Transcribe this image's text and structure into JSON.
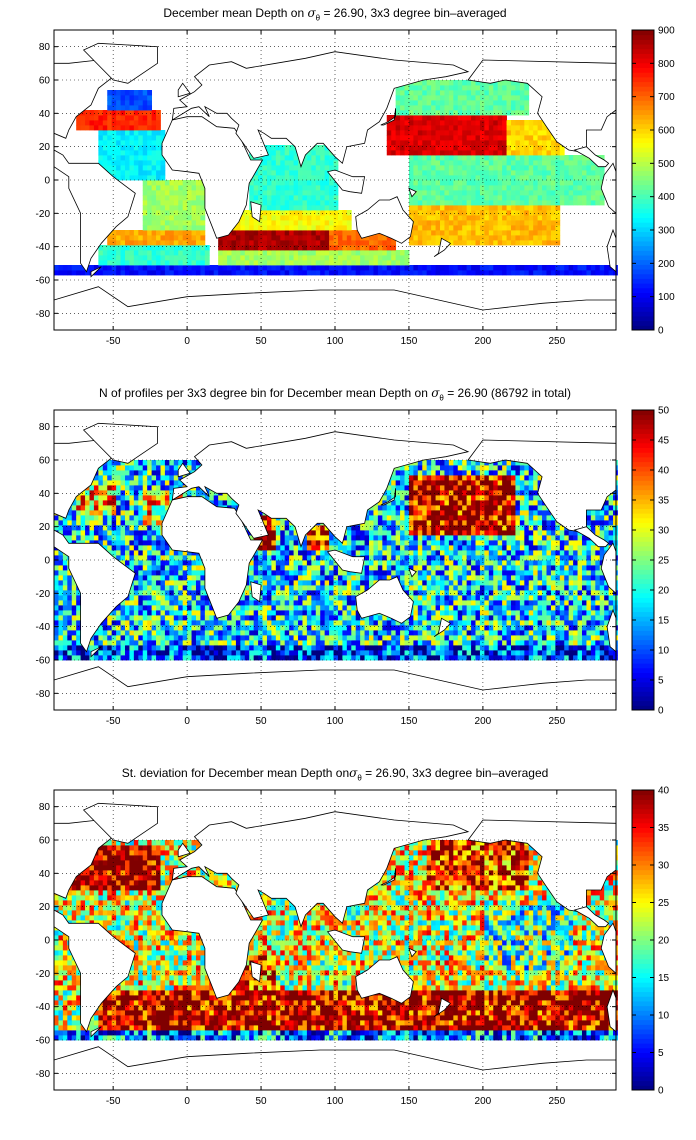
{
  "chart_data": [
    {
      "type": "heatmap",
      "title_prefix": "December mean Depth on ",
      "title_symbol": "σ",
      "title_subscript": "θ",
      "title_suffix": " = 26.90, 3x3 degree bin–averaged",
      "xticks": [
        "-50",
        "0",
        "50",
        "100",
        "150",
        "200",
        "250"
      ],
      "xtick_values": [
        -50,
        0,
        50,
        100,
        150,
        200,
        250
      ],
      "yticks": [
        "80",
        "60",
        "40",
        "20",
        "0",
        "-20",
        "-40",
        "-60",
        "-80"
      ],
      "ytick_values": [
        80,
        60,
        40,
        20,
        0,
        -20,
        -40,
        -60,
        -80
      ],
      "xlim": [
        -90,
        290
      ],
      "ylim": [
        -90,
        90
      ],
      "clim": [
        0,
        900
      ],
      "colorbar_ticks": [
        "900",
        "800",
        "700",
        "600",
        "500",
        "400",
        "300",
        "200",
        "100",
        "0"
      ],
      "colorbar_values": [
        900,
        800,
        700,
        600,
        500,
        400,
        300,
        200,
        100,
        0
      ],
      "grid": true,
      "colormap": "jet",
      "bin_size_deg": 3,
      "regions": [
        {
          "lon": [
            -60,
            -15
          ],
          "lat": [
            0,
            30
          ],
          "value": 330
        },
        {
          "lon": [
            -75,
            -20
          ],
          "lat": [
            30,
            40
          ],
          "value": 760
        },
        {
          "lon": [
            -55,
            -25
          ],
          "lat": [
            40,
            52
          ],
          "value": 180
        },
        {
          "lon": [
            -30,
            10
          ],
          "lat": [
            -30,
            0
          ],
          "value": 480
        },
        {
          "lon": [
            -55,
            10
          ],
          "lat": [
            -40,
            -30
          ],
          "value": 640
        },
        {
          "lon": [
            -60,
            15
          ],
          "lat": [
            -52,
            -40
          ],
          "value": 380
        },
        {
          "lon": [
            40,
            100
          ],
          "lat": [
            -20,
            20
          ],
          "value": 380
        },
        {
          "lon": [
            30,
            110
          ],
          "lat": [
            -30,
            -20
          ],
          "value": 560
        },
        {
          "lon": [
            20,
            95
          ],
          "lat": [
            -42,
            -30
          ],
          "value": 860
        },
        {
          "lon": [
            95,
            140
          ],
          "lat": [
            -42,
            -30
          ],
          "value": 700
        },
        {
          "lon": [
            20,
            150
          ],
          "lat": [
            -52,
            -42
          ],
          "value": 480
        },
        {
          "lon": [
            150,
            250
          ],
          "lat": [
            -40,
            -15
          ],
          "value": 620
        },
        {
          "lon": [
            150,
            280
          ],
          "lat": [
            -15,
            15
          ],
          "value": 420
        },
        {
          "lon": [
            135,
            215
          ],
          "lat": [
            15,
            38
          ],
          "value": 820
        },
        {
          "lon": [
            215,
            255
          ],
          "lat": [
            15,
            35
          ],
          "value": 600
        },
        {
          "lon": [
            140,
            230
          ],
          "lat": [
            38,
            60
          ],
          "value": 420
        },
        {
          "lon": [
            -90,
            290
          ],
          "lat": [
            -58,
            -52
          ],
          "value": 120
        }
      ]
    },
    {
      "type": "heatmap",
      "title_prefix": "N of profiles per 3x3 degree bin for December mean Depth on ",
      "title_symbol": "σ",
      "title_subscript": "θ",
      "title_suffix": " = 26.90 (86792 in total)",
      "xticks": [
        "-50",
        "0",
        "50",
        "100",
        "150",
        "200",
        "250"
      ],
      "xtick_values": [
        -50,
        0,
        50,
        100,
        150,
        200,
        250
      ],
      "yticks": [
        "80",
        "60",
        "40",
        "20",
        "0",
        "-20",
        "-40",
        "-60",
        "-80"
      ],
      "ytick_values": [
        80,
        60,
        40,
        20,
        0,
        -20,
        -40,
        -60,
        -80
      ],
      "xlim": [
        -90,
        290
      ],
      "ylim": [
        -90,
        90
      ],
      "clim": [
        0,
        50
      ],
      "colorbar_ticks": [
        "50",
        "45",
        "40",
        "35",
        "30",
        "25",
        "20",
        "15",
        "10",
        "5",
        "0"
      ],
      "colorbar_values": [
        50,
        45,
        40,
        35,
        30,
        25,
        20,
        15,
        10,
        5,
        0
      ],
      "grid": true,
      "colormap": "jet",
      "bin_size_deg": 3,
      "regions": [
        {
          "lon": [
            -90,
            290
          ],
          "lat": [
            -60,
            60
          ],
          "value": 18
        },
        {
          "lon": [
            150,
            220
          ],
          "lat": [
            15,
            50
          ],
          "value": 47
        },
        {
          "lon": [
            45,
            60
          ],
          "lat": [
            5,
            25
          ],
          "value": 46
        },
        {
          "lon": [
            80,
            95
          ],
          "lat": [
            5,
            20
          ],
          "value": 44
        },
        {
          "lon": [
            -75,
            -50
          ],
          "lat": [
            25,
            45
          ],
          "value": 34
        },
        {
          "lon": [
            -30,
            0
          ],
          "lat": [
            20,
            40
          ],
          "value": 32
        },
        {
          "lon": [
            -90,
            290
          ],
          "lat": [
            -60,
            -52
          ],
          "value": 8
        }
      ]
    },
    {
      "type": "heatmap",
      "title_prefix": "St. deviation for December mean Depth on",
      "title_symbol": "σ",
      "title_subscript": "θ",
      "title_suffix": " = 26.90, 3x3 degree bin–averaged",
      "xticks": [
        "-50",
        "0",
        "50",
        "100",
        "150",
        "200",
        "250"
      ],
      "xtick_values": [
        -50,
        0,
        50,
        100,
        150,
        200,
        250
      ],
      "yticks": [
        "80",
        "60",
        "40",
        "20",
        "0",
        "-20",
        "-40",
        "-60",
        "-80"
      ],
      "ytick_values": [
        80,
        60,
        40,
        20,
        0,
        -20,
        -40,
        -60,
        -80
      ],
      "xlim": [
        -90,
        290
      ],
      "ylim": [
        -90,
        90
      ],
      "clim": [
        0,
        40
      ],
      "colorbar_ticks": [
        "40",
        "35",
        "30",
        "25",
        "20",
        "15",
        "10",
        "5",
        "0"
      ],
      "colorbar_values": [
        40,
        35,
        30,
        25,
        20,
        15,
        10,
        5,
        0
      ],
      "grid": true,
      "colormap": "jet",
      "bin_size_deg": 3,
      "regions": [
        {
          "lon": [
            -90,
            290
          ],
          "lat": [
            -60,
            60
          ],
          "value": 24
        },
        {
          "lon": [
            -80,
            -20
          ],
          "lat": [
            28,
            55
          ],
          "value": 40
        },
        {
          "lon": [
            -60,
            300
          ],
          "lat": [
            -55,
            -32
          ],
          "value": 38
        },
        {
          "lon": [
            160,
            230
          ],
          "lat": [
            30,
            58
          ],
          "value": 34
        },
        {
          "lon": [
            20,
            60
          ],
          "lat": [
            -30,
            -10
          ],
          "value": 32
        },
        {
          "lon": [
            200,
            260
          ],
          "lat": [
            -20,
            20
          ],
          "value": 18
        },
        {
          "lon": [
            -90,
            290
          ],
          "lat": [
            -60,
            -55
          ],
          "value": 10
        }
      ]
    }
  ]
}
